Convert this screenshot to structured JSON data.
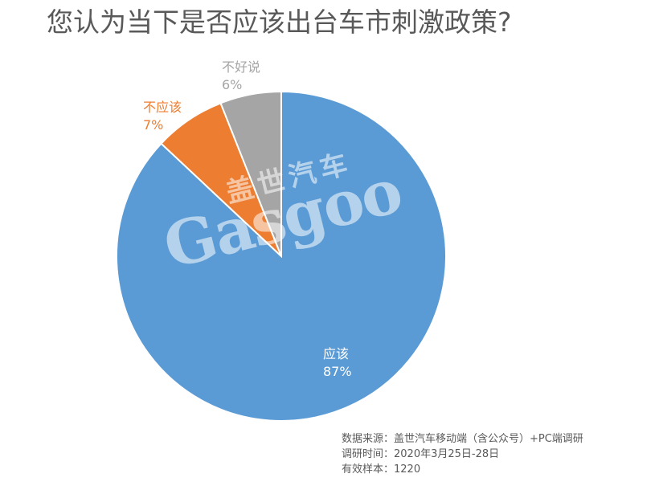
{
  "chart_data": {
    "type": "pie",
    "title": "您认为当下是否应该出台车市刺激政策?",
    "categories": [
      "应该",
      "不应该",
      "不好说"
    ],
    "values": [
      87,
      7,
      6
    ],
    "value_labels": [
      "87%",
      "7%",
      "6%"
    ],
    "colors": [
      "#5B9BD5",
      "#ED7D31",
      "#A5A5A5"
    ],
    "start_angle_deg": 0,
    "direction": "clockwise",
    "legend": "none",
    "data_labels": "category and percent"
  },
  "watermark": {
    "cn": "盖世汽车",
    "en": "Gasgoo"
  },
  "source": {
    "line1": "数据来源：盖世汽车移动端（含公众号）+PC端调研",
    "line2": "调研时间：2020年3月25日-28日",
    "line3": "有效样本：1220"
  }
}
